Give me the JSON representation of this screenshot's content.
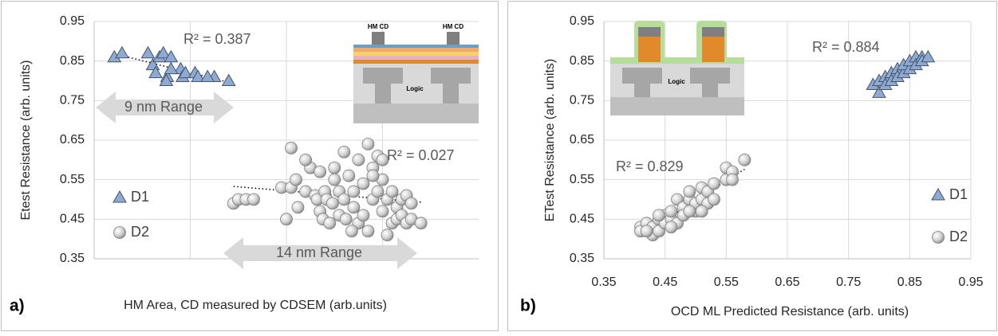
{
  "chart_data": [
    {
      "type": "scatter",
      "panel_label": "a)",
      "x_label": "HM Area, CD measured by CDSEM (arb.units)",
      "y_label": "Etest Resistance (arb. units)",
      "xlim": [
        0,
        4
      ],
      "ylim": [
        0.35,
        0.95
      ],
      "yticks": [
        0.35,
        0.45,
        0.55,
        0.65,
        0.75,
        0.85,
        0.95
      ],
      "grid": true,
      "legend": "center left",
      "trendline": true,
      "annotations": [
        "R² = 0.387",
        "R² = 0.027",
        "9 nm Range",
        "14 nm Range"
      ],
      "inset_labels": [
        "HM CD",
        "HM CD",
        "Logic"
      ],
      "series": [
        {
          "name": "D1",
          "marker": "triangle",
          "color": "#8eaad2",
          "x": [
            0.21,
            0.29,
            0.56,
            0.61,
            0.68,
            0.72,
            0.8,
            0.64,
            0.76,
            0.75,
            0.9,
            0.92,
            0.95,
            1.05,
            1.08,
            1.25,
            1.18,
            0.8,
            1.4
          ],
          "values": [
            0.86,
            0.87,
            0.87,
            0.84,
            0.86,
            0.87,
            0.86,
            0.82,
            0.81,
            0.8,
            0.83,
            0.81,
            0.82,
            0.82,
            0.81,
            0.81,
            0.81,
            0.83,
            0.8
          ]
        },
        {
          "name": "D2",
          "marker": "circle",
          "color": "#d0d0d0",
          "x": [
            1.45,
            1.5,
            1.58,
            1.66,
            1.95,
            2.0,
            2.05,
            2.05,
            2.1,
            2.12,
            2.2,
            2.25,
            2.2,
            2.3,
            2.32,
            2.35,
            2.38,
            2.4,
            2.42,
            2.45,
            2.48,
            2.5,
            2.5,
            2.55,
            2.55,
            2.6,
            2.6,
            2.62,
            2.65,
            2.7,
            2.7,
            2.75,
            2.75,
            2.8,
            2.8,
            2.85,
            2.85,
            2.9,
            2.9,
            2.95,
            2.95,
            3.0,
            3.0,
            3.05,
            3.05,
            3.1,
            3.1,
            3.15,
            3.15,
            3.2,
            3.2,
            3.25,
            3.25,
            3.3,
            3.3,
            3.4,
            2.9,
            2.68,
            2.35,
            3.0
          ],
          "values": [
            0.49,
            0.5,
            0.5,
            0.5,
            0.53,
            0.45,
            0.53,
            0.63,
            0.55,
            0.48,
            0.52,
            0.58,
            0.6,
            0.51,
            0.5,
            0.47,
            0.45,
            0.52,
            0.5,
            0.44,
            0.49,
            0.55,
            0.58,
            0.52,
            0.46,
            0.62,
            0.5,
            0.45,
            0.56,
            0.52,
            0.48,
            0.6,
            0.44,
            0.54,
            0.46,
            0.42,
            0.64,
            0.58,
            0.5,
            0.61,
            0.52,
            0.55,
            0.47,
            0.5,
            0.41,
            0.44,
            0.52,
            0.48,
            0.45,
            0.5,
            0.46,
            0.51,
            0.44,
            0.49,
            0.45,
            0.44,
            0.56,
            0.42,
            0.57,
            0.6
          ]
        }
      ]
    },
    {
      "type": "scatter",
      "panel_label": "b)",
      "x_label": "OCD ML Predicted Resistance (arb. units)",
      "y_label": "ETest Resistance (arb. units)",
      "xlim": [
        0.35,
        0.95
      ],
      "xticks": [
        0.35,
        0.45,
        0.55,
        0.65,
        0.75,
        0.85,
        0.95
      ],
      "ylim": [
        0.35,
        0.95
      ],
      "yticks": [
        0.35,
        0.45,
        0.55,
        0.65,
        0.75,
        0.85,
        0.95
      ],
      "grid": true,
      "legend": "center right",
      "trendline": true,
      "annotations": [
        "R² = 0.884",
        "R² = 0.829"
      ],
      "inset_labels": [
        "Logic"
      ],
      "series": [
        {
          "name": "D1",
          "marker": "triangle",
          "color": "#8eaad2",
          "x": [
            0.79,
            0.8,
            0.8,
            0.81,
            0.81,
            0.82,
            0.82,
            0.83,
            0.83,
            0.84,
            0.84,
            0.85,
            0.85,
            0.86,
            0.86,
            0.87,
            0.87,
            0.88
          ],
          "values": [
            0.79,
            0.77,
            0.8,
            0.81,
            0.79,
            0.82,
            0.8,
            0.83,
            0.81,
            0.82,
            0.84,
            0.83,
            0.85,
            0.86,
            0.84,
            0.86,
            0.85,
            0.86
          ]
        },
        {
          "name": "D2",
          "marker": "circle",
          "color": "#d0d0d0",
          "x": [
            0.41,
            0.41,
            0.42,
            0.43,
            0.43,
            0.44,
            0.44,
            0.45,
            0.45,
            0.46,
            0.46,
            0.47,
            0.47,
            0.48,
            0.48,
            0.49,
            0.49,
            0.5,
            0.5,
            0.51,
            0.51,
            0.52,
            0.52,
            0.53,
            0.53,
            0.55,
            0.55,
            0.56,
            0.56,
            0.58,
            0.46,
            0.49,
            0.51,
            0.44,
            0.42
          ],
          "values": [
            0.43,
            0.42,
            0.44,
            0.43,
            0.41,
            0.45,
            0.42,
            0.46,
            0.44,
            0.45,
            0.47,
            0.44,
            0.5,
            0.48,
            0.46,
            0.5,
            0.52,
            0.47,
            0.49,
            0.5,
            0.53,
            0.49,
            0.52,
            0.54,
            0.5,
            0.55,
            0.58,
            0.57,
            0.55,
            0.6,
            0.43,
            0.47,
            0.47,
            0.46,
            0.42
          ]
        }
      ]
    }
  ]
}
